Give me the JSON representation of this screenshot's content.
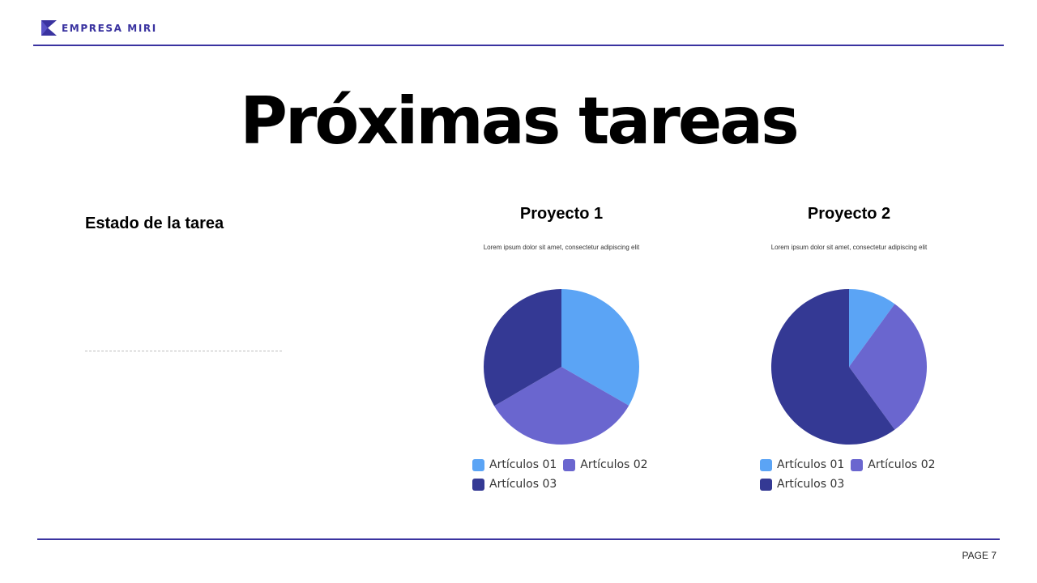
{
  "header": {
    "brand": "EMPRESA MIRI",
    "logo_icon": "brand-mark-icon",
    "accent_color": "#3a33a0"
  },
  "title": "Próximas tareas",
  "status": {
    "heading": "Estado de la tarea"
  },
  "chart_data": [
    {
      "type": "pie",
      "title": "Proyecto 1",
      "subtitle": "Lorem ipsum dolor sit amet, consectetur adipiscing elit",
      "categories": [
        "Artículos 01",
        "Artículos 02",
        "Artículos 03"
      ],
      "values": [
        33.3,
        33.3,
        33.4
      ],
      "colors": [
        "#5ba4f5",
        "#6a66cf",
        "#343994"
      ],
      "legend": "bottom"
    },
    {
      "type": "pie",
      "title": "Proyecto 2",
      "subtitle": "Lorem ipsum dolor sit amet, consectetur adipiscing elit",
      "categories": [
        "Artículos 01",
        "Artículos 02",
        "Artículos 03"
      ],
      "values": [
        10,
        30,
        60
      ],
      "colors": [
        "#5ba4f5",
        "#6a66cf",
        "#343994"
      ],
      "legend": "bottom"
    }
  ],
  "footer": {
    "page_label": "PAGE 7"
  }
}
